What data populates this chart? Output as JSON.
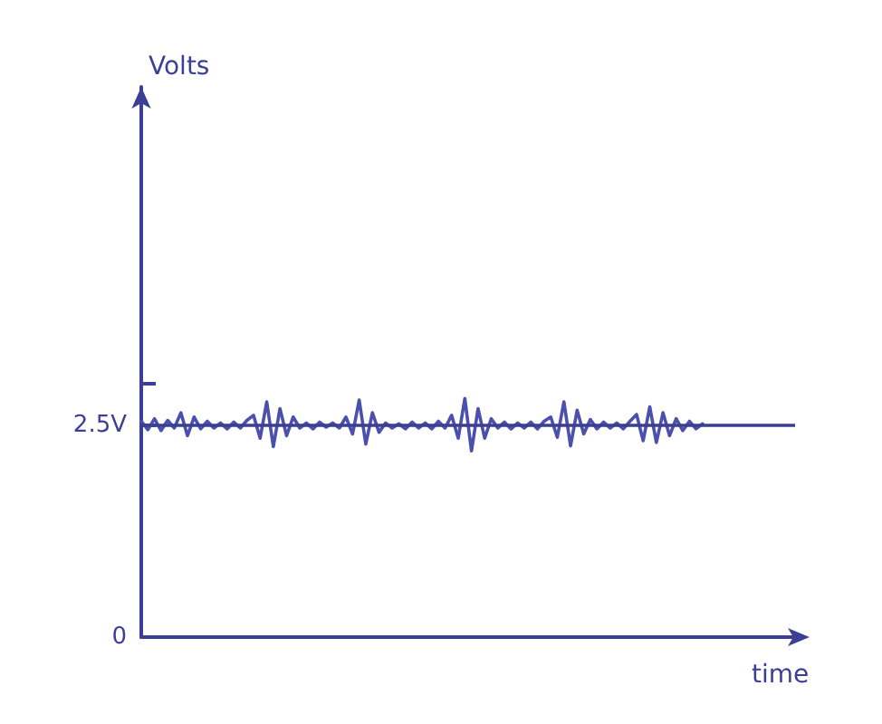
{
  "chart_data": {
    "type": "line",
    "xlabel": "time",
    "ylabel": "Volts",
    "categories": [
      null,
      null,
      null,
      null,
      null,
      null,
      null,
      null,
      null,
      null,
      null,
      null,
      null,
      null,
      null,
      null,
      null,
      null,
      null,
      null,
      null,
      null,
      null,
      null,
      null,
      null,
      null,
      null,
      null,
      null,
      null,
      null,
      null,
      null,
      null,
      null,
      null,
      null,
      null,
      null,
      null,
      null,
      null,
      null,
      null,
      null,
      null,
      null,
      null,
      null,
      null,
      null,
      null,
      null,
      null,
      null,
      null,
      null,
      null,
      null,
      null,
      null,
      null,
      null,
      null,
      null,
      null,
      null,
      null,
      null,
      null,
      null,
      null,
      null,
      null,
      null,
      null,
      null,
      null,
      null,
      null,
      null,
      null,
      null,
      null,
      null,
      null,
      null,
      null,
      null,
      null,
      null,
      null,
      null,
      null,
      null,
      null,
      null,
      null,
      null
    ],
    "series": [
      {
        "color": "#4b4fae",
        "values": [
          2.55,
          2.45,
          2.58,
          2.44,
          2.56,
          2.47,
          2.65,
          2.38,
          2.6,
          2.46,
          2.55,
          2.47,
          2.53,
          2.46,
          2.54,
          2.47,
          2.56,
          2.62,
          2.35,
          2.78,
          2.25,
          2.7,
          2.38,
          2.6,
          2.47,
          2.53,
          2.46,
          2.54,
          2.48,
          2.53,
          2.47,
          2.6,
          2.4,
          2.8,
          2.28,
          2.65,
          2.42,
          2.53,
          2.47,
          2.52,
          2.46,
          2.54,
          2.47,
          2.53,
          2.46,
          2.55,
          2.47,
          2.62,
          2.35,
          2.82,
          2.2,
          2.7,
          2.35,
          2.58,
          2.47,
          2.54,
          2.46,
          2.53,
          2.47,
          2.54,
          2.46,
          2.55,
          2.6,
          2.36,
          2.78,
          2.26,
          2.68,
          2.4,
          2.57,
          2.46,
          2.54,
          2.47,
          2.53,
          2.46,
          2.55,
          2.63,
          2.32,
          2.72,
          2.3,
          2.65,
          2.38,
          2.58,
          2.44,
          2.55,
          2.46,
          2.52,
          null,
          null,
          null,
          null,
          null,
          null,
          null,
          null,
          null,
          null,
          null,
          null,
          null,
          null
        ]
      }
    ],
    "ylim": [
      0,
      6.5
    ],
    "yticks": [
      0,
      {
        "value": 2.5,
        "label": "2.5V"
      },
      {
        "value": 3,
        "label": null
      }
    ],
    "ref_lines": [
      {
        "axis": "y",
        "value": 2.5,
        "color": "#3b3f8f"
      }
    ],
    "grid": false,
    "marker": "none",
    "line_style": "solid"
  }
}
